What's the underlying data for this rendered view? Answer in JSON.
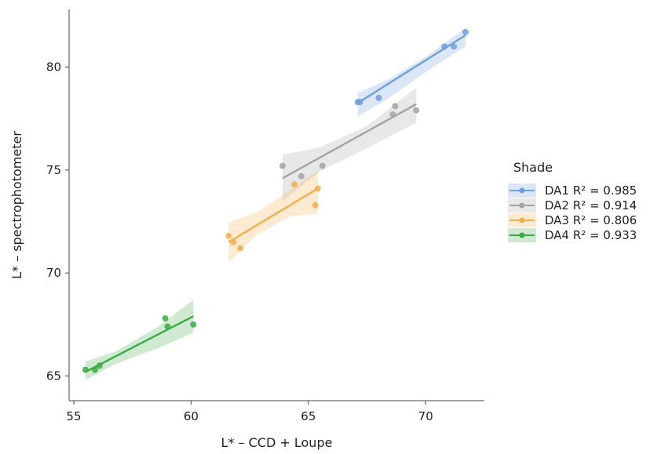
{
  "chart_data": {
    "type": "scatter",
    "xlabel": "L* – CCD + Loupe",
    "ylabel": "L* – spectrophotometer",
    "xlim": [
      54.8,
      72.5
    ],
    "ylim": [
      63.8,
      82.8
    ],
    "xticks": [
      55,
      60,
      65,
      70
    ],
    "yticks": [
      65,
      70,
      75,
      80
    ],
    "grid": false,
    "legend": {
      "title": "Shade",
      "placement": "right"
    },
    "series": [
      {
        "name": "DA1",
        "r2_label": "R² = 0.985",
        "color": "#6f9fdc",
        "points": [
          [
            67.1,
            78.3
          ],
          [
            67.2,
            78.3
          ],
          [
            68.0,
            78.5
          ],
          [
            70.8,
            81.0
          ],
          [
            71.2,
            81.0
          ],
          [
            71.7,
            81.7
          ]
        ],
        "fit": {
          "x": [
            67.1,
            71.7
          ],
          "y": [
            78.25,
            81.55
          ]
        },
        "band": {
          "x": [
            67.1,
            68.5,
            70.0,
            71.7
          ],
          "upper": [
            78.75,
            79.45,
            80.5,
            81.9
          ],
          "lower": [
            77.6,
            78.55,
            79.75,
            81.0
          ]
        }
      },
      {
        "name": "DA2",
        "r2_label": "R² = 0.914",
        "color": "#a3a3a3",
        "points": [
          [
            63.9,
            75.2
          ],
          [
            64.7,
            74.7
          ],
          [
            65.6,
            75.2
          ],
          [
            68.6,
            77.7
          ],
          [
            68.7,
            78.1
          ],
          [
            69.6,
            77.9
          ]
        ],
        "fit": {
          "x": [
            63.9,
            69.6
          ],
          "y": [
            74.6,
            78.2
          ]
        },
        "band": {
          "x": [
            63.9,
            65.5,
            67.5,
            69.6
          ],
          "upper": [
            75.75,
            76.1,
            77.15,
            79.0
          ],
          "lower": [
            73.5,
            74.95,
            76.05,
            77.3
          ]
        }
      },
      {
        "name": "DA3",
        "r2_label": "R² = 0.806",
        "color": "#f2ae4a",
        "points": [
          [
            61.6,
            71.8
          ],
          [
            61.8,
            71.5
          ],
          [
            62.1,
            71.2
          ],
          [
            64.4,
            74.3
          ],
          [
            65.3,
            73.3
          ],
          [
            65.4,
            74.1
          ]
        ],
        "fit": {
          "x": [
            61.6,
            65.4
          ],
          "y": [
            71.5,
            74.1
          ]
        },
        "band": {
          "x": [
            61.6,
            62.8,
            64.2,
            65.4
          ],
          "upper": [
            72.45,
            72.95,
            74.0,
            75.0
          ],
          "lower": [
            70.5,
            71.85,
            72.75,
            72.9
          ]
        }
      },
      {
        "name": "DA4",
        "r2_label": "R² = 0.933",
        "color": "#3eaa47",
        "points": [
          [
            55.5,
            65.3
          ],
          [
            55.9,
            65.3
          ],
          [
            56.1,
            65.5
          ],
          [
            58.9,
            67.8
          ],
          [
            59.0,
            67.4
          ],
          [
            60.1,
            67.5
          ]
        ],
        "fit": {
          "x": [
            55.5,
            60.1
          ],
          "y": [
            65.2,
            67.9
          ]
        },
        "band": {
          "x": [
            55.5,
            56.8,
            58.6,
            60.1
          ],
          "upper": [
            65.7,
            66.2,
            67.4,
            68.7
          ],
          "lower": [
            64.8,
            65.6,
            66.35,
            67.1
          ]
        }
      }
    ]
  }
}
